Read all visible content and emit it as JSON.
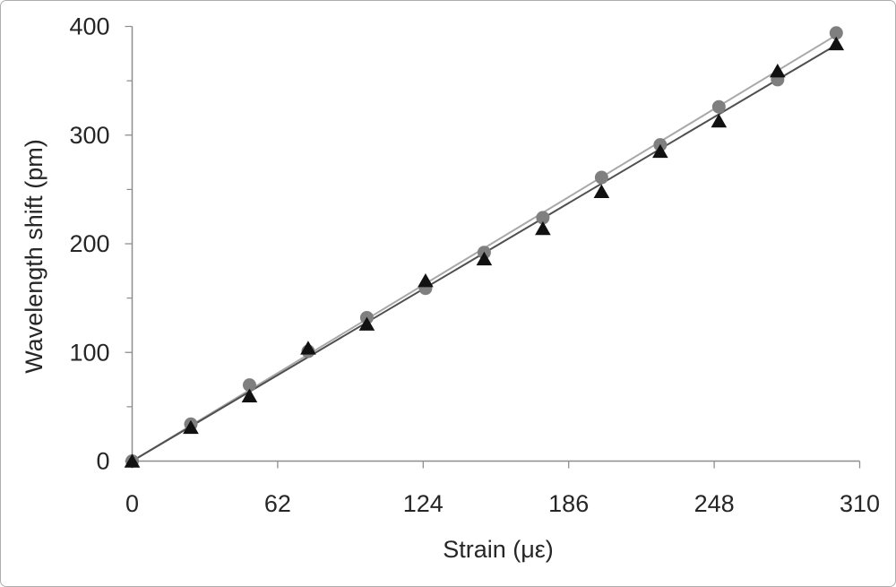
{
  "figure": {
    "background_color": "#ffffff",
    "border_color": "#adadad"
  },
  "axis_style": {
    "line_color": "#8e8e8e",
    "label_color": "#262626"
  },
  "chart_data": {
    "type": "scatter",
    "title": "",
    "xlabel": "Strain (με)",
    "ylabel": "Wavelength shift (pm)",
    "xlim": [
      0,
      310
    ],
    "ylim": [
      0,
      400
    ],
    "x_ticks": [
      0,
      62,
      124,
      186,
      248,
      310
    ],
    "y_ticks": [
      0,
      100,
      200,
      300,
      400
    ],
    "y_minor_ticks": [
      50,
      150,
      250,
      350
    ],
    "grid": false,
    "legend": null,
    "x": [
      0,
      25,
      50,
      75,
      100,
      125,
      150,
      175,
      200,
      225,
      250,
      275,
      300
    ],
    "series": [
      {
        "name": "gray-circle-series",
        "marker": "circle",
        "marker_color": "#7f7f7f",
        "values": [
          0,
          34,
          70,
          101,
          132,
          159,
          192,
          224,
          261,
          291,
          326,
          351,
          394
        ],
        "trendline": {
          "slope": 1.3067,
          "x_range": [
            0,
            300
          ],
          "color": "#a8a8a8"
        }
      },
      {
        "name": "black-triangle-series",
        "marker": "triangle",
        "marker_color": "#111111",
        "values": [
          0,
          31,
          60,
          104,
          126,
          166,
          186,
          214,
          248,
          285,
          313,
          359,
          384
        ],
        "trendline": {
          "slope": 1.2767,
          "x_range": [
            0,
            300
          ],
          "color": "#4f4f4f"
        }
      }
    ]
  }
}
